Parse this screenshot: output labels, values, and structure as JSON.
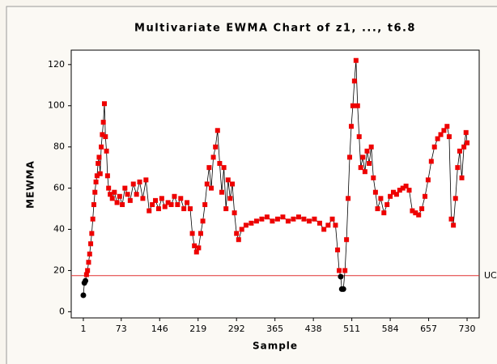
{
  "chart_data": {
    "type": "line",
    "title": "Multivariate EWMA Chart of z1, ..., t6.8",
    "x_label": "Sample",
    "y_label": "MEWMA",
    "ucl_label": "UC",
    "ucl": 17.5,
    "color": "#ee0000",
    "below_color": "#000000",
    "line_color": "#000000",
    "ucl_color": "#e03030",
    "xlim": [
      -22,
      753
    ],
    "ylim": [
      -3,
      127
    ],
    "xticks": [
      1,
      73,
      146,
      219,
      292,
      365,
      438,
      511,
      584,
      657,
      730
    ],
    "yticks": [
      0,
      20,
      40,
      60,
      80,
      100,
      120
    ],
    "x": [
      1,
      3,
      5,
      7,
      9,
      11,
      13,
      15,
      17,
      19,
      21,
      23,
      25,
      27,
      29,
      31,
      33,
      35,
      37,
      39,
      41,
      43,
      45,
      47,
      49,
      52,
      56,
      60,
      65,
      70,
      75,
      80,
      85,
      90,
      96,
      102,
      108,
      114,
      120,
      126,
      132,
      138,
      144,
      150,
      156,
      162,
      168,
      174,
      180,
      186,
      192,
      198,
      204,
      208,
      212,
      216,
      220,
      224,
      228,
      232,
      236,
      240,
      244,
      248,
      252,
      256,
      260,
      264,
      268,
      272,
      276,
      280,
      284,
      288,
      292,
      296,
      302,
      310,
      320,
      330,
      340,
      350,
      360,
      370,
      380,
      390,
      400,
      410,
      420,
      430,
      440,
      450,
      458,
      466,
      474,
      480,
      484,
      487,
      490,
      492,
      495,
      498,
      501,
      504,
      507,
      510,
      513,
      516,
      519,
      522,
      525,
      528,
      532,
      536,
      540,
      544,
      548,
      552,
      556,
      560,
      566,
      572,
      578,
      584,
      590,
      596,
      602,
      608,
      614,
      620,
      626,
      632,
      638,
      644,
      650,
      656,
      662,
      668,
      674,
      680,
      686,
      692,
      696,
      700,
      704,
      708,
      712,
      716,
      720,
      724,
      728,
      730
    ],
    "values": [
      8,
      14,
      15,
      18,
      20,
      24,
      28,
      33,
      38,
      45,
      52,
      58,
      63,
      66,
      72,
      75,
      67,
      80,
      86,
      92,
      101,
      85,
      78,
      66,
      60,
      57,
      55,
      58,
      53,
      56,
      52,
      60,
      57,
      54,
      62,
      57,
      63,
      55,
      64,
      49,
      52,
      54,
      50,
      55,
      51,
      53,
      52,
      56,
      52,
      55,
      50,
      53,
      50,
      38,
      32,
      29,
      31,
      38,
      44,
      52,
      62,
      70,
      60,
      75,
      80,
      88,
      72,
      58,
      70,
      50,
      64,
      55,
      62,
      48,
      38,
      35,
      40,
      42,
      43,
      44,
      45,
      46,
      44,
      45,
      46,
      44,
      45,
      46,
      45,
      44,
      45,
      43,
      40,
      42,
      45,
      42,
      30,
      20,
      17,
      11,
      11,
      20,
      35,
      55,
      75,
      90,
      100,
      112,
      122,
      100,
      85,
      70,
      75,
      68,
      78,
      72,
      80,
      65,
      58,
      50,
      55,
      48,
      52,
      56,
      58,
      57,
      59,
      60,
      61,
      59,
      49,
      48,
      47,
      50,
      56,
      64,
      73,
      80,
      84,
      86,
      88,
      90,
      85,
      45,
      42,
      55,
      70,
      78,
      65,
      80,
      87,
      82
    ]
  }
}
